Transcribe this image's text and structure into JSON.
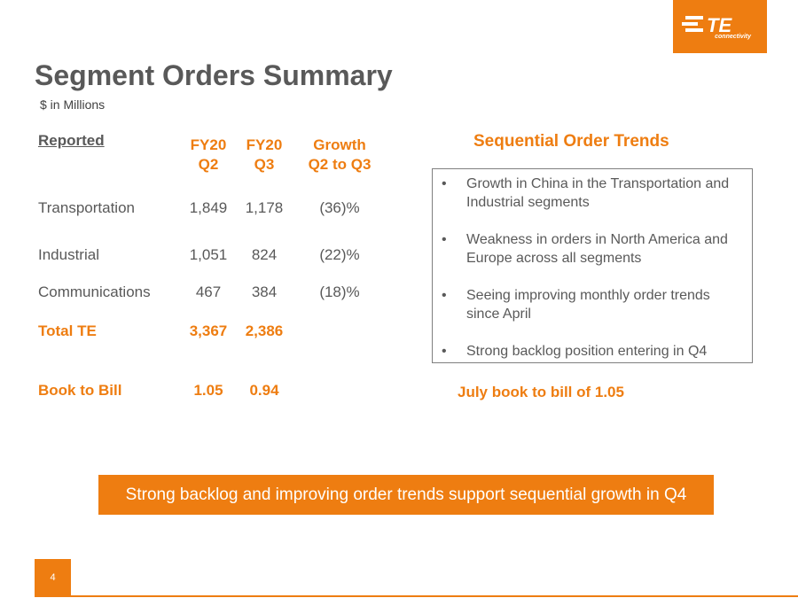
{
  "logo": {
    "brand": "TE",
    "tagline": "connectivity",
    "color": "#ee7d11"
  },
  "title": "Segment Orders Summary",
  "subtitle": "$ in Millions",
  "table": {
    "reported_label": "Reported",
    "columns": [
      {
        "line1": "FY20",
        "line2": "Q2"
      },
      {
        "line1": "FY20",
        "line2": "Q3"
      },
      {
        "line1": "Growth",
        "line2": "Q2 to Q3"
      }
    ],
    "rows": [
      {
        "label": "Transportation",
        "q2": "1,849",
        "q3": "1,178",
        "growth": "(36)%"
      },
      {
        "label": "Industrial",
        "q2": "1,051",
        "q3": "824",
        "growth": "(22)%"
      },
      {
        "label": "Communications",
        "q2": "467",
        "q3": "384",
        "growth": "(18)%"
      }
    ],
    "total": {
      "label": "Total TE",
      "q2": "3,367",
      "q3": "2,386"
    },
    "book_to_bill": {
      "label": "Book to Bill",
      "q2": "1.05",
      "q3": "0.94"
    }
  },
  "trends": {
    "title": "Sequential Order Trends",
    "bullets": [
      "Growth in China in the Transportation and Industrial segments",
      "Weakness in orders in North America and Europe across all segments",
      "Seeing improving monthly order trends since April",
      "Strong backlog position entering in Q4"
    ],
    "bullet_char": "•",
    "footnote": "July book to bill of 1.05"
  },
  "banner": "Strong backlog and improving order trends support sequential growth in Q4",
  "page_number": "4",
  "accent_color": "#ee7d11"
}
